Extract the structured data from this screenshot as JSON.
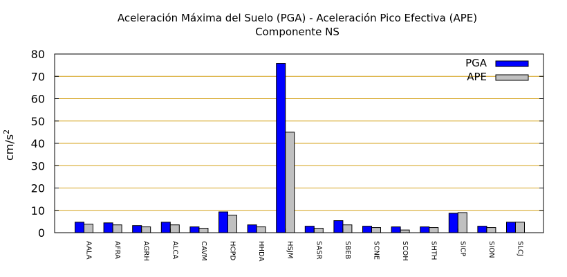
{
  "chart_data": {
    "type": "bar",
    "title": "Aceleración Máxima del Suelo (PGA) -  Aceleración Pico Efectiva (APE)",
    "subtitle": "Componente NS",
    "xlabel": "",
    "ylabel": "cm/s",
    "ylabel_superscript": "2",
    "ylim": [
      0,
      80
    ],
    "yticks": [
      0,
      10,
      20,
      30,
      40,
      50,
      60,
      70,
      80
    ],
    "grid": true,
    "legend_position": "top-right",
    "categories": [
      "AALA",
      "AFRA",
      "AGRH",
      "ALCA",
      "CAVM",
      "HCPD",
      "HHDA",
      "HSJM",
      "SASR",
      "SBEB",
      "SCNE",
      "SCOH",
      "SHTH",
      "SICP",
      "SION",
      "SLCJ"
    ],
    "series": [
      {
        "name": "PGA",
        "color": "#0000ff",
        "values": [
          4.7,
          4.4,
          3.2,
          4.7,
          2.6,
          9.3,
          3.5,
          75.8,
          2.9,
          5.4,
          2.9,
          2.6,
          2.6,
          8.7,
          2.9,
          4.7
        ]
      },
      {
        "name": "APE",
        "color": "#c0c0c0",
        "values": [
          3.8,
          3.5,
          2.6,
          3.5,
          2.0,
          7.8,
          2.6,
          45.0,
          2.0,
          3.5,
          2.3,
          1.2,
          2.3,
          9.0,
          2.3,
          4.7
        ]
      }
    ],
    "grid_color": "#d4a017"
  }
}
